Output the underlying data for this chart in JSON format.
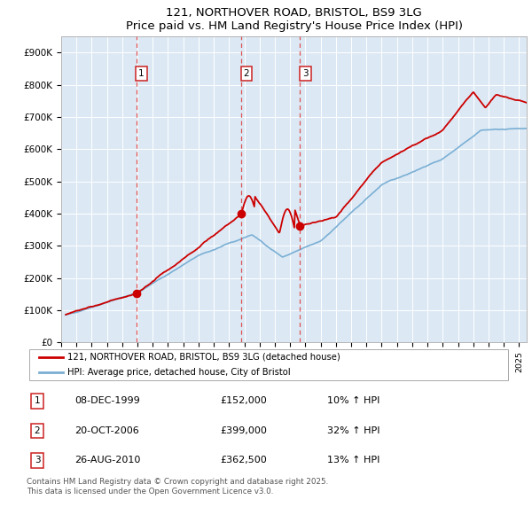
{
  "title": "121, NORTHOVER ROAD, BRISTOL, BS9 3LG",
  "subtitle": "Price paid vs. HM Land Registry's House Price Index (HPI)",
  "ylim": [
    0,
    950000
  ],
  "yticks": [
    0,
    100000,
    200000,
    300000,
    400000,
    500000,
    600000,
    700000,
    800000,
    900000
  ],
  "ytick_labels": [
    "£0",
    "£100K",
    "£200K",
    "£300K",
    "£400K",
    "£500K",
    "£600K",
    "£700K",
    "£800K",
    "£900K"
  ],
  "bg_color": "#dce9f5",
  "line_color_red": "#cc0000",
  "line_color_blue": "#7bafd4",
  "dashed_line_color": "#dd4444",
  "sale_dates": [
    1999.92,
    2006.8,
    2010.65
  ],
  "sale_prices": [
    152000,
    399000,
    362500
  ],
  "sale_labels": [
    "1",
    "2",
    "3"
  ],
  "legend_label_red": "121, NORTHOVER ROAD, BRISTOL, BS9 3LG (detached house)",
  "legend_label_blue": "HPI: Average price, detached house, City of Bristol",
  "table_data": [
    [
      "1",
      "08-DEC-1999",
      "£152,000",
      "10% ↑ HPI"
    ],
    [
      "2",
      "20-OCT-2006",
      "£399,000",
      "32% ↑ HPI"
    ],
    [
      "3",
      "26-AUG-2010",
      "£362,500",
      "13% ↑ HPI"
    ]
  ],
  "footer": "Contains HM Land Registry data © Crown copyright and database right 2025.\nThis data is licensed under the Open Government Licence v3.0.",
  "start_year": 1995.3,
  "end_year": 2025.5
}
